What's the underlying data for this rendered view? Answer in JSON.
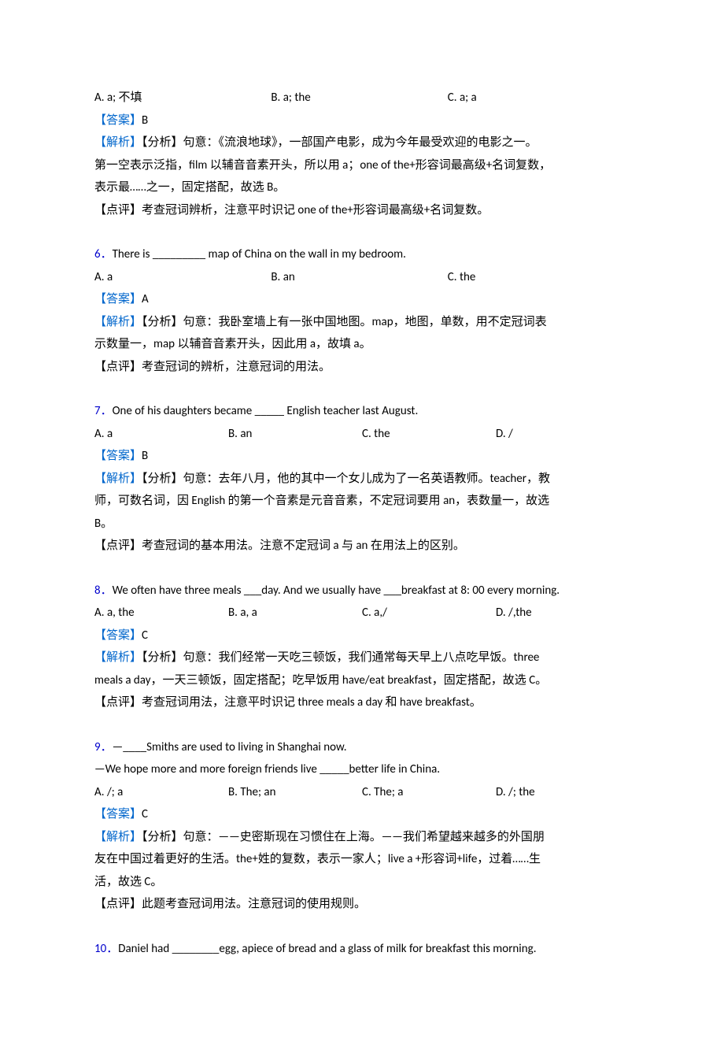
{
  "labels": {
    "answer": "【答案】",
    "explain": "【解析】",
    "analysis": "【分析】",
    "review": "【点评】"
  },
  "q5": {
    "optA": "A. a; 不填",
    "optB": "B. a; the",
    "optC": "C. a; a",
    "answer": "B",
    "exp1": "句意：《流浪地球》，一部国产电影，成为今年最受欢迎的电影之一。",
    "exp2": "第一空表示泛指，film 以辅音音素开头，所以用 a；one of the+形容词最高级+名词复数，",
    "exp3": "表示最……之一，固定搭配，故选 B。",
    "rev": "考查冠词辨析，注意平时识记 one of the+形容词最高级+名词复数。"
  },
  "q6": {
    "num": "6．",
    "stem": "There is _________ map of China on the wall in my bedroom.",
    "optA": "A. a",
    "optB": "B. an",
    "optC": "C. the",
    "answer": "A",
    "exp1": "句意：我卧室墙上有一张中国地图。map，地图，单数，用不定冠词表",
    "exp2": "示数量一，map 以辅音音素开头，因此用 a，故填 a。",
    "rev": "考查冠词的辨析，注意冠词的用法。"
  },
  "q7": {
    "num": "7．",
    "stem": "One of his daughters became _____ English teacher last August.",
    "optA": "A. a",
    "optB": "B. an",
    "optC": "C. the",
    "optD": "D. /",
    "answer": "B",
    "exp1": "句意：去年八月，他的其中一个女儿成为了一名英语教师。teacher，教",
    "exp2": "师，可数名词，因 English 的第一个音素是元音音素，不定冠词要用 an，表数量一，故选",
    "exp3": "B。",
    "rev": "考查冠词的基本用法。注意不定冠词 a 与 an 在用法上的区别。"
  },
  "q8": {
    "num": "8．",
    "stem": "We often have three meals ___day. And we usually have ___breakfast at 8: 00 every morning.",
    "optA": "A. a, the",
    "optB": "B. a, a",
    "optC": "C. a,/",
    "optD": "D. /,the",
    "answer": "C",
    "exp1": "句意：我们经常一天吃三顿饭，我们通常每天早上八点吃早饭。three",
    "exp2": "meals a day，一天三顿饭，固定搭配；吃早饭用 have/eat breakfast，固定搭配，故选 C。",
    "rev": "考查冠词用法，注意平时识记 three meals a day 和 have breakfast。"
  },
  "q9": {
    "num": "9．",
    "stem1": "—____Smiths are used to living in Shanghai now.",
    "stem2": "—We hope more and more foreign friends live _____better life in China.",
    "optA": "A. /; a",
    "optB": "B. The; an",
    "optC": "C. The; a",
    "optD": "D. /; the",
    "answer": "C",
    "exp1": "句意：——史密斯现在习惯住在上海。——我们希望越来越多的外国朋",
    "exp2": "友在中国过着更好的生活。the+姓的复数，表示一家人；live a +形容词+life，过着……生",
    "exp3": "活，故选 C。",
    "rev": "此题考查冠词用法。注意冠词的使用规则。"
  },
  "q10": {
    "num": "10．",
    "stem": "Daniel had ________egg, apiece of bread and a glass of milk for breakfast this morning."
  }
}
